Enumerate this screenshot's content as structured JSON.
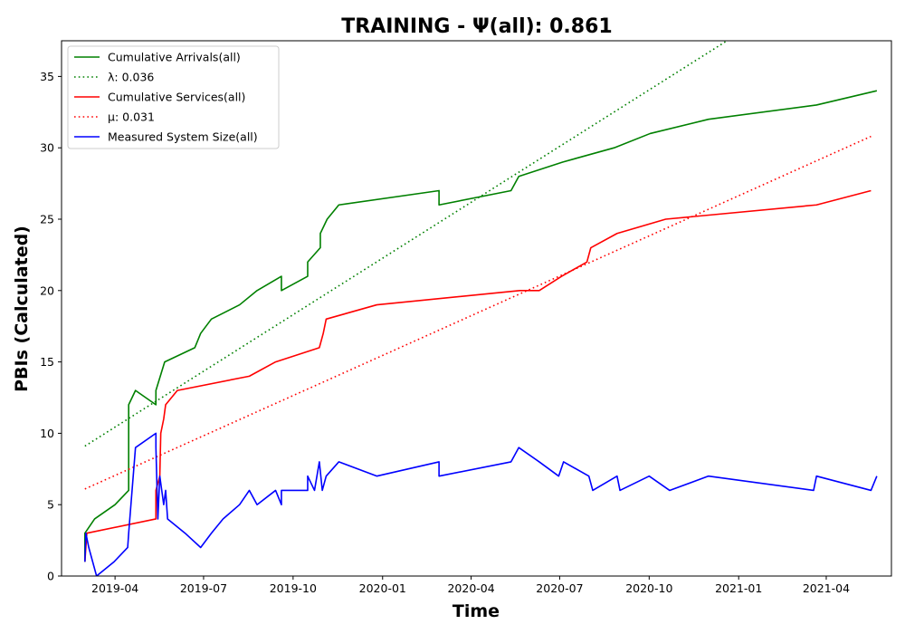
{
  "chart_data": {
    "type": "line",
    "title": "TRAINING -  Ψ(all): 0.861",
    "xlabel": "Time",
    "ylabel": "PBIs (Calculated)",
    "xlim": [
      "2019-02-05",
      "2021-06-07"
    ],
    "ylim": [
      0,
      37.5
    ],
    "grid": false,
    "legend_position": "top-left",
    "xticks": [
      "2019-04",
      "2019-07",
      "2019-10",
      "2020-01",
      "2020-04",
      "2020-07",
      "2020-10",
      "2021-01",
      "2021-04"
    ],
    "yticks": [
      0,
      5,
      10,
      15,
      20,
      25,
      30,
      35
    ],
    "series": [
      {
        "name": "Cumulative Arrivals(all)",
        "color": "#008000",
        "style": "solid",
        "x": [
          "2019-03-01",
          "2019-03-01",
          "2019-03-11",
          "2019-04-01",
          "2019-04-15",
          "2019-04-15",
          "2019-04-22",
          "2019-05-13",
          "2019-05-13",
          "2019-05-22",
          "2019-06-22",
          "2019-06-28",
          "2019-07-09",
          "2019-08-07",
          "2019-08-25",
          "2019-09-19",
          "2019-09-19",
          "2019-10-16",
          "2019-10-16",
          "2019-10-29",
          "2019-10-29",
          "2019-11-05",
          "2019-11-17",
          "2020-02-28",
          "2020-02-28",
          "2020-05-12",
          "2020-05-20",
          "2020-07-04",
          "2020-08-26",
          "2020-10-02",
          "2020-12-01",
          "2021-03-22",
          "2021-05-23"
        ],
        "y": [
          1,
          3,
          4,
          5,
          6,
          12,
          13,
          12,
          13,
          15,
          16,
          17,
          18,
          19,
          20,
          21,
          20,
          21,
          22,
          23,
          24,
          25,
          26,
          27,
          26,
          27,
          28,
          29,
          30,
          31,
          32,
          33,
          34
        ]
      },
      {
        "name": "λ: 0.036",
        "color": "#008000",
        "style": "dotted",
        "x": [
          "2019-03-01",
          "2020-12-20"
        ],
        "y": [
          9.1,
          37.5
        ]
      },
      {
        "name": "Cumulative Services(all)",
        "color": "#ff0000",
        "style": "solid",
        "x": [
          "2019-03-01",
          "2019-03-03",
          "2019-05-13",
          "2019-05-13",
          "2019-05-17",
          "2019-05-18",
          "2019-05-21",
          "2019-05-23",
          "2019-06-04",
          "2019-08-17",
          "2019-09-13",
          "2019-10-28",
          "2019-11-01",
          "2019-11-04",
          "2019-12-26",
          "2020-05-21",
          "2020-06-10",
          "2020-07-03",
          "2020-07-29",
          "2020-08-02",
          "2020-08-29",
          "2020-10-18",
          "2021-03-22",
          "2021-05-17"
        ],
        "y": [
          1,
          3,
          4,
          6,
          7,
          10,
          11,
          12,
          13,
          14,
          15,
          16,
          17,
          18,
          19,
          20,
          20,
          21,
          22,
          23,
          24,
          25,
          26,
          27
        ]
      },
      {
        "name": "μ: 0.031",
        "color": "#ff0000",
        "style": "dotted",
        "x": [
          "2019-03-01",
          "2021-05-17"
        ],
        "y": [
          6.1,
          30.8
        ]
      },
      {
        "name": "Measured System Size(all)",
        "color": "#0000ff",
        "style": "solid",
        "x": [
          "2019-03-01",
          "2019-03-02",
          "2019-03-05",
          "2019-03-13",
          "2019-03-31",
          "2019-04-14",
          "2019-04-15",
          "2019-04-22",
          "2019-05-13",
          "2019-05-13",
          "2019-05-15",
          "2019-05-17",
          "2019-05-19",
          "2019-05-21",
          "2019-05-23",
          "2019-05-25",
          "2019-06-12",
          "2019-06-28",
          "2019-07-09",
          "2019-07-21",
          "2019-08-07",
          "2019-08-17",
          "2019-08-25",
          "2019-09-13",
          "2019-09-19",
          "2019-09-19",
          "2019-10-16",
          "2019-10-16",
          "2019-10-23",
          "2019-10-28",
          "2019-10-31",
          "2019-11-04",
          "2019-11-17",
          "2019-12-26",
          "2020-02-28",
          "2020-02-28",
          "2020-05-12",
          "2020-05-20",
          "2020-06-10",
          "2020-06-30",
          "2020-07-05",
          "2020-07-31",
          "2020-08-04",
          "2020-08-29",
          "2020-09-01",
          "2020-10-01",
          "2020-10-22",
          "2020-12-01",
          "2021-03-19",
          "2021-03-22",
          "2021-05-17",
          "2021-05-23"
        ],
        "y": [
          1,
          3,
          2,
          0,
          1,
          2,
          3,
          9,
          10,
          9,
          4,
          7,
          6,
          5,
          6,
          4,
          3,
          2,
          3,
          4,
          5,
          6,
          5,
          6,
          5,
          6,
          6,
          7,
          6,
          8,
          6,
          7,
          8,
          7,
          8,
          7,
          8,
          9,
          8,
          7,
          8,
          7,
          6,
          7,
          6,
          7,
          6,
          7,
          6,
          7,
          6,
          7
        ]
      }
    ]
  }
}
